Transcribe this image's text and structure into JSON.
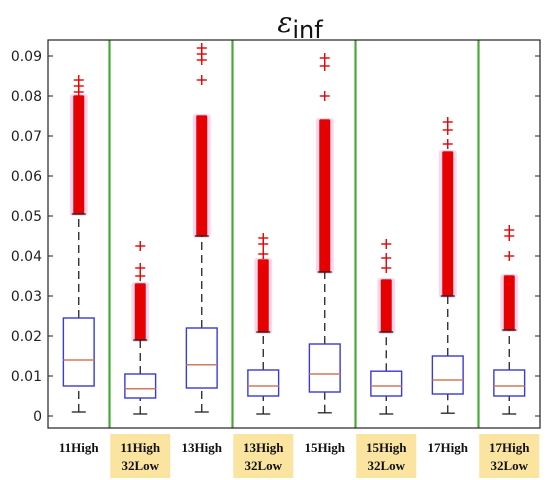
{
  "chart_data": {
    "type": "box",
    "title_symbol": "ε",
    "title_subscript": "inf",
    "ylim": [
      -0.003,
      0.094
    ],
    "yticks": [
      "0",
      "0.01",
      "0.02",
      "0.03",
      "0.04",
      "0.05",
      "0.06",
      "0.07",
      "0.08",
      "0.09"
    ],
    "ytick_values": [
      0,
      0.01,
      0.02,
      0.03,
      0.04,
      0.05,
      0.06,
      0.07,
      0.08,
      0.09
    ],
    "grid": false,
    "colors": {
      "box": "#3a3ad6",
      "median": "#d27a5a",
      "outlier": "#e60000",
      "outlier_glow": "#f2b8e0",
      "whisker": "#222222",
      "separator": "#4aa83a",
      "label_highlight": "#fbe4a0"
    },
    "groups": [
      {
        "label_lines": [
          "11High"
        ],
        "highlight": false,
        "min": 0.001,
        "q1": 0.0075,
        "median": 0.014,
        "q3": 0.0245,
        "whisker_high": 0.0505,
        "outlier_band": [
          0.0505,
          0.08
        ],
        "outliers": [
          0.081,
          0.0825,
          0.084
        ]
      },
      {
        "label_lines": [
          "11High",
          "32Low"
        ],
        "highlight": true,
        "min": 0.0005,
        "q1": 0.0045,
        "median": 0.0068,
        "q3": 0.0105,
        "whisker_high": 0.019,
        "outlier_band": [
          0.019,
          0.033
        ],
        "outliers": [
          0.035,
          0.037,
          0.0425
        ]
      },
      {
        "label_lines": [
          "13High"
        ],
        "highlight": false,
        "min": 0.001,
        "q1": 0.007,
        "median": 0.0128,
        "q3": 0.022,
        "whisker_high": 0.045,
        "outlier_band": [
          0.045,
          0.075
        ],
        "outliers": [
          0.084,
          0.089,
          0.0905,
          0.092
        ]
      },
      {
        "label_lines": [
          "13High",
          "32Low"
        ],
        "highlight": true,
        "min": 0.0005,
        "q1": 0.005,
        "median": 0.0075,
        "q3": 0.0115,
        "whisker_high": 0.021,
        "outlier_band": [
          0.021,
          0.039
        ],
        "outliers": [
          0.0405,
          0.043,
          0.0445
        ]
      },
      {
        "label_lines": [
          "15High"
        ],
        "highlight": false,
        "min": 0.0008,
        "q1": 0.006,
        "median": 0.0105,
        "q3": 0.018,
        "whisker_high": 0.036,
        "outlier_band": [
          0.036,
          0.074
        ],
        "outliers": [
          0.08,
          0.0875,
          0.0895
        ]
      },
      {
        "label_lines": [
          "15High",
          "32Low"
        ],
        "highlight": true,
        "min": 0.0005,
        "q1": 0.005,
        "median": 0.0075,
        "q3": 0.0112,
        "whisker_high": 0.021,
        "outlier_band": [
          0.021,
          0.034
        ],
        "outliers": [
          0.037,
          0.0395,
          0.043
        ]
      },
      {
        "label_lines": [
          "17High"
        ],
        "highlight": false,
        "min": 0.0007,
        "q1": 0.0055,
        "median": 0.009,
        "q3": 0.015,
        "whisker_high": 0.03,
        "outlier_band": [
          0.03,
          0.066
        ],
        "outliers": [
          0.068,
          0.0715,
          0.0735
        ]
      },
      {
        "label_lines": [
          "17High",
          "32Low"
        ],
        "highlight": true,
        "min": 0.0005,
        "q1": 0.005,
        "median": 0.0075,
        "q3": 0.0115,
        "whisker_high": 0.0215,
        "outlier_band": [
          0.0215,
          0.035
        ],
        "outliers": [
          0.04,
          0.045,
          0.0465
        ]
      }
    ]
  }
}
